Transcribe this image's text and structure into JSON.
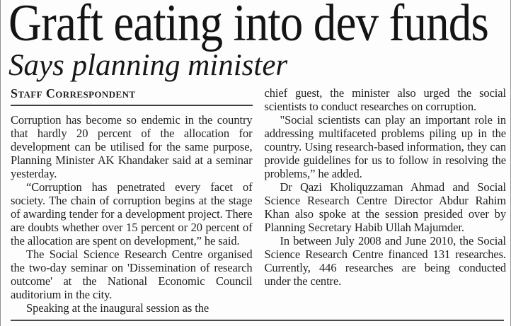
{
  "article": {
    "headline": "Graft eating into dev funds",
    "subheadline": "Says planning minister",
    "byline": "Staff Correspondent",
    "body": {
      "left": [
        "Corruption has become so endemic in the country that hardly 20 percent of the allocation for development can be utilised for the same purpose, Planning Minister AK Khandaker said at a seminar yesterday.",
        "“Corruption has penetrated every facet of society. The chain of corruption begins at the stage of awarding tender for a development project. There are doubts whether over 15 percent or 20 percent of the allocation are spent on development,” he said.",
        "The Social Science Research Centre organised the two-day seminar on 'Dissemination of research outcome' at the National Economic Council auditorium in the city.",
        "Speaking at the inaugural session as the"
      ],
      "right": [
        "chief guest, the minister also urged the social scientists to conduct researches on corruption.",
        "\"Social scientists can play an important role in addressing multifaceted problems piling up in the country. Using research-based information, they can provide guidelines for us to follow in resolving the problems,” he added.",
        "Dr Qazi Kholiquzzaman Ahmad and Social Science Research Centre Director Abdur Rahim Khan also spoke at the session presided over by Planning Secretary Habib Ullah Majumder.",
        "In between July 2008 and June 2010, the Social Science Research Centre financed 131 researches. Currently, 446 researches are being conducted under the centre."
      ]
    }
  },
  "colors": {
    "background": "#fdfdfd",
    "text": "#1f1f1f",
    "rule": "#3d3d3d",
    "edge_border": "#8f8f8f"
  }
}
